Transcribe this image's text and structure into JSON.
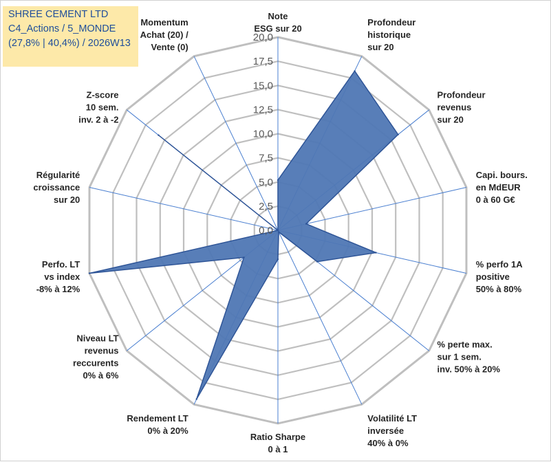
{
  "chart_data": {
    "type": "radar",
    "title_lines": [
      "SHREE CEMENT LTD",
      "C4_Actions / 5_MONDE",
      "(27,8% | 40,4%) / 2026W13"
    ],
    "rmin": 0,
    "rmax": 20,
    "tick_step": 2.5,
    "tick_labels": [
      "0,0",
      "2,5",
      "5,0",
      "7,5",
      "10,0",
      "12,5",
      "15,0",
      "17,5",
      "20,0"
    ],
    "axes": [
      {
        "name": "note-esg",
        "label": [
          "Note",
          "ESG sur 20"
        ]
      },
      {
        "name": "profondeur-historique",
        "label": [
          "Profondeur",
          "historique",
          "sur 20"
        ]
      },
      {
        "name": "profondeur-revenus",
        "label": [
          "Profondeur",
          "revenus",
          "sur 20"
        ]
      },
      {
        "name": "capi-bours",
        "label": [
          "Capi. bours.",
          "en MdEUR",
          "0 à 60 G€"
        ]
      },
      {
        "name": "perfo-1a-positive",
        "label": [
          "% perfo 1A",
          "positive",
          "50% à 80%"
        ]
      },
      {
        "name": "perte-max",
        "label": [
          "% perte max.",
          "sur 1 sem.",
          "inv. 50% à 20%"
        ]
      },
      {
        "name": "volatilite-lt",
        "label": [
          "Volatilité LT",
          "inversée",
          "40% à 0%"
        ]
      },
      {
        "name": "ratio-sharpe",
        "label": [
          "Ratio Sharpe",
          "0 à 1"
        ]
      },
      {
        "name": "rendement-lt",
        "label": [
          "Rendement LT",
          "0% à 20%"
        ]
      },
      {
        "name": "niveau-lt-revenus",
        "label": [
          "Niveau LT",
          "revenus",
          "reccurents",
          "0% à 6%"
        ]
      },
      {
        "name": "perfo-lt-vs-index",
        "label": [
          "Perfo. LT",
          "vs index",
          "-8% à 12%"
        ]
      },
      {
        "name": "regularite-croissance",
        "label": [
          "Régularité",
          "croissance",
          "sur 20"
        ]
      },
      {
        "name": "z-score",
        "label": [
          "Z-score",
          "10 sem.",
          "inv. 2 à -2"
        ]
      },
      {
        "name": "momentum",
        "label": [
          "Momentum",
          "Achat (20) /",
          "Vente (0)"
        ]
      }
    ],
    "series": [
      {
        "name": "SHREE CEMENT LTD",
        "values": [
          5.2,
          18.3,
          15.9,
          3.0,
          10.4,
          5.2,
          0.2,
          3.0,
          19.4,
          4.5,
          20.0,
          0.0,
          15.8,
          0.0
        ]
      }
    ],
    "colors": {
      "fill": "#4f77b4",
      "stroke": "#2f5597",
      "spoke": "#4a7fd0",
      "grid": "#bfbfbf"
    }
  }
}
